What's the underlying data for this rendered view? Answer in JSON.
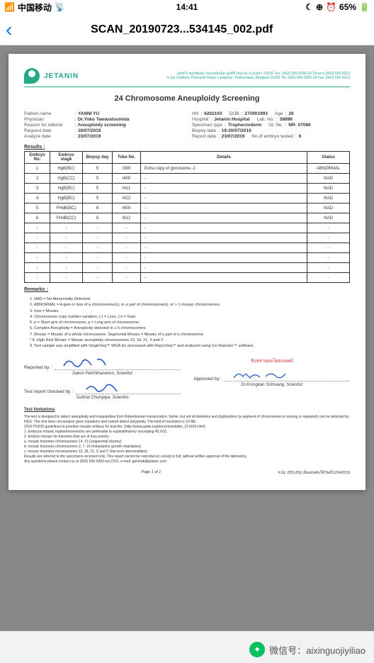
{
  "statusbar": {
    "carrier": "中国移动",
    "wifi": "􀙇",
    "time": "14:41",
    "moon": "☾",
    "lock": "⊕",
    "alarm": "⏰",
    "battery_pct": "65%"
  },
  "nav": {
    "back": "‹",
    "title": "SCAN_20190723...534145_002.pdf"
  },
  "letterhead": {
    "company": "JETANIN",
    "addr_line1": "เลขที่ 5 ซอยชิดลม ถนนเพลินจิต ลุมพินี ปทุมวัน กรุงเทพฯ 10330 โทร. (662) 655-5300-10 โทรสาร (662) 655-5313",
    "addr_line2": "5 Soi Chidlom, Ploenchit Road, Lumpinee, Pathumwan, Bangkok 10330 Tel. (662) 655-5300-10 Fax. (662) 655-5313"
  },
  "title": "24 Chromosome Aneuploidy Screening",
  "info": {
    "left": [
      {
        "l": "Patient name",
        "v": "YANNI YU"
      },
      {
        "l": "Physician",
        "v": "Dr.Yoko Tawaratsumida"
      },
      {
        "l": "Reason for referral",
        "v": "Aneuploidy screening"
      },
      {
        "l": "Request date",
        "v": "16/07/2019"
      },
      {
        "l": "Analyze date",
        "v": "23/07/2019"
      }
    ],
    "right": [
      [
        {
          "l": "HN",
          "v": "6202103"
        },
        {
          "l": "DOB",
          "v": "27/09/1993"
        },
        {
          "l": "Age",
          "v": "26"
        }
      ],
      [
        {
          "l": "Hospital",
          "v": "Jetanin Hospital"
        },
        {
          "l": "Lab. No.",
          "v": "58896"
        }
      ],
      [
        {
          "l": "Specimen type",
          "v": "Trophectoderm"
        },
        {
          "l": "GL No.",
          "v": "NR- 07086"
        }
      ],
      [
        {
          "l": "Biopsy date",
          "v": "19-20/07/2019"
        }
      ],
      [
        {
          "l": "Report date",
          "v": "23/07/2019"
        },
        {
          "l": "No.of embryo tested",
          "v": "6"
        }
      ]
    ]
  },
  "results_label": "Results :",
  "columns": [
    "Embryo No.",
    "Embryo stage",
    "Biopsy day",
    "Tube No.",
    "Details",
    "Status"
  ],
  "rows": [
    {
      "no": "1",
      "stage": "HgB(BC)",
      "day": "5",
      "tube": "I390",
      "details": "Extra copy of gonosome,-2",
      "status": "ABNORMAL"
    },
    {
      "no": "2",
      "stage": "HgB(CC)",
      "day": "5",
      "tube": "I400",
      "details": "-",
      "status": "NAD"
    },
    {
      "no": "3",
      "stage": "HgB(BC)",
      "day": "5",
      "tube": "I411",
      "details": "-",
      "status": "NAD"
    },
    {
      "no": "4",
      "stage": "HgB(BC)",
      "day": "5",
      "tube": "I422",
      "details": "-",
      "status": "NAD"
    },
    {
      "no": "5",
      "stage": "FHdB(BC)",
      "day": "6",
      "tube": "I600",
      "details": "-",
      "status": "NAD"
    },
    {
      "no": "6",
      "stage": "FHdB(CC)",
      "day": "6",
      "tube": "I612",
      "details": "-",
      "status": "NAD"
    },
    {
      "no": "-",
      "stage": "-",
      "day": "-",
      "tube": "-",
      "details": "-",
      "status": "-"
    },
    {
      "no": "-",
      "stage": "-",
      "day": "-",
      "tube": "-",
      "details": "-",
      "status": "-"
    },
    {
      "no": "-",
      "stage": "-",
      "day": "-",
      "tube": "-",
      "details": "-",
      "status": "-"
    },
    {
      "no": "-",
      "stage": "-",
      "day": "-",
      "tube": "-",
      "details": "-",
      "status": "-"
    },
    {
      "no": "-",
      "stage": "-",
      "day": "-",
      "tube": "-",
      "details": "-",
      "status": "-"
    },
    {
      "no": "-",
      "stage": "-",
      "day": "-",
      "tube": "-",
      "details": "-",
      "status": "-"
    }
  ],
  "remarks_label": "Remarks :",
  "remarks": [
    "1. NAD = No Abnormality Detected.",
    "2. ABNORMAL = A gain or loss of a chromosome(s), or a part of chromosome(s), or > 1 mosaic chromosomes.",
    "3. mos = Mosaic.",
    "4. Chromosome copy number variation; (-) = Loss, (+) = Gain.",
    "5. p = Short arm of chromosome; q = Long arm of chromosome.",
    "6. Complex Aneuploidy = Aneuploidy detected in ≥ 5 chromosomes.",
    "7. Mosaic = Mosaic of a whole chromosome. Segmental Mosaic = Mosaic of a part of a chromosome.",
    "* 8. High Risk Mosaic = Mosaic aneuploidy chromosomes 13, 18, 21, X and Y.",
    "9. Test sample was amplified with SingleSeq™ WGA kit, processed with ReproSeq™ and analyzed using Ion Reporter™ software."
  ],
  "sig": {
    "thai": "รับทราบผลโดยแพทย์",
    "reported_lbl": "Reported by :",
    "reported_name": "Sakon Petchthananon, Scientist",
    "approved_lbl": "Approved by :",
    "approved_name": "Dr.Krongkan Srimuang, Scientist",
    "checked_lbl": "Test report checked by :",
    "checked_name": "Suttirat Chumpiya, Scientist"
  },
  "limits": {
    "title": "Test limitations",
    "body": "The test is designed to detect aneuploidy and irregularities from Robertsonian translocation. Some, but not all deletions and duplications (a segment of chromosome is missing or repeated) can be detected by NGS. This test does not analyze gene mutations and cannot detect polyploidy. The limit of resolution is 10 Mb.",
    "ref": "2016 PGDIS guidelines to prioritize mosaic embryo for transfer. (http://www.pgdis.org/docs/newsletter_071816.html)",
    "items": [
      "1. Embryos mosaic euploid/monosomy are preferable to euploid/trisomy (excepting 45,XO).",
      "2. Embryo mosaic for trisomies that are of less priority:",
      "   a. mosaic trisomies chromosomes 14, 15 (uniparental disomy)",
      "   b. mosaic trisomies chromosomes 2, 7, 16 (intrauterine growth retardation)",
      "   c. mosaic trisomies chromosomes 13, 18, 21, X and Y (live born abnormalities)"
    ],
    "note1": "Results are referred to the specimens received only. This report cannot be reproduced, except in full, without written approval of the laboratory.",
    "note2": "Any questions please contact us at (662) 655-5300 ext.2101, e-mail: genelab@jetanin.com"
  },
  "footer": {
    "page": "Page 1 of 1",
    "code": "F.GL 055 (05) มีผลบังคับใช้วันที่ 22042019"
  },
  "wechat": {
    "label": "微信号：",
    "id": "aixinguojiyiliao"
  }
}
